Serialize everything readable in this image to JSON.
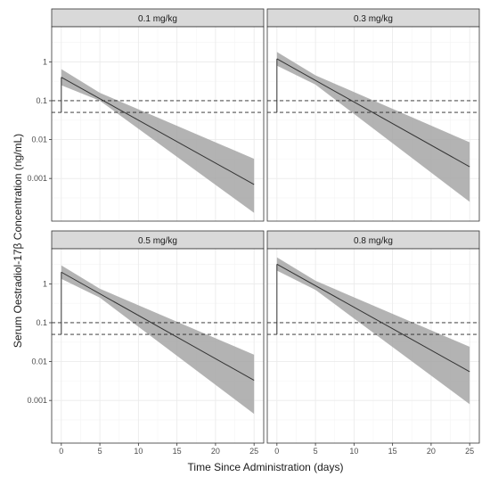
{
  "chart_data": {
    "type": "line",
    "layout": "2x2 facet grid",
    "ylabel": "Serum Oestradiol-17β Concentration (ng/mL)",
    "xlabel": "Time Since Administration (days)",
    "y_scale": "log10",
    "ylim": [
      8e-05,
      8
    ],
    "xlim": [
      -1.25,
      26.25
    ],
    "x_ticks": [
      0,
      5,
      10,
      15,
      20,
      25
    ],
    "x_tick_labels": [
      "0",
      "5",
      "10",
      "15",
      "20",
      "25"
    ],
    "y_ticks": [
      0.001,
      0.01,
      0.1,
      1
    ],
    "y_tick_labels": [
      "0.001",
      "0.01",
      "0.1",
      "1"
    ],
    "reference_lines": [
      0.1,
      0.05
    ],
    "reference_line_style": "dashed",
    "grid": true,
    "ribbon": "grey confidence band",
    "colors": {
      "panel_background": "#ffffff",
      "strip_background": "#d9d9d9",
      "ribbon": "#a6a6a6",
      "line": "#333333",
      "grid": "#ebebeb",
      "panel_border": "#333333"
    },
    "panels": [
      {
        "label": "0.1 mg/kg",
        "baseline": 0.05,
        "peak": {
          "x": 0,
          "y": 0.4
        },
        "line": [
          {
            "x": 0,
            "y": 0.4
          },
          {
            "x": 25,
            "y": 0.0007
          }
        ],
        "band_upper": [
          {
            "x": 0,
            "y": 0.65
          },
          {
            "x": 5,
            "y": 0.16
          },
          {
            "x": 25,
            "y": 0.0032
          }
        ],
        "band_lower": [
          {
            "x": 0,
            "y": 0.25
          },
          {
            "x": 5,
            "y": 0.1
          },
          {
            "x": 25,
            "y": 0.00013
          }
        ]
      },
      {
        "label": "0.3 mg/kg",
        "baseline": 0.05,
        "peak": {
          "x": 0,
          "y": 1.2
        },
        "line": [
          {
            "x": 0,
            "y": 1.2
          },
          {
            "x": 25,
            "y": 0.002
          }
        ],
        "band_upper": [
          {
            "x": 0,
            "y": 1.8
          },
          {
            "x": 5,
            "y": 0.45
          },
          {
            "x": 25,
            "y": 0.0085
          }
        ],
        "band_lower": [
          {
            "x": 0,
            "y": 0.8
          },
          {
            "x": 5,
            "y": 0.26
          },
          {
            "x": 25,
            "y": 0.00025
          }
        ]
      },
      {
        "label": "0.5 mg/kg",
        "baseline": 0.05,
        "peak": {
          "x": 0,
          "y": 2.0
        },
        "line": [
          {
            "x": 0,
            "y": 2.0
          },
          {
            "x": 25,
            "y": 0.0033
          }
        ],
        "band_upper": [
          {
            "x": 0,
            "y": 3.0
          },
          {
            "x": 5,
            "y": 0.75
          },
          {
            "x": 25,
            "y": 0.015
          }
        ],
        "band_lower": [
          {
            "x": 0,
            "y": 1.35
          },
          {
            "x": 5,
            "y": 0.44
          },
          {
            "x": 25,
            "y": 0.00045
          }
        ]
      },
      {
        "label": "0.8 mg/kg",
        "baseline": 0.05,
        "peak": {
          "x": 0,
          "y": 3.2
        },
        "line": [
          {
            "x": 0,
            "y": 3.2
          },
          {
            "x": 25,
            "y": 0.0055
          }
        ],
        "band_upper": [
          {
            "x": 0,
            "y": 4.8
          },
          {
            "x": 5,
            "y": 1.2
          },
          {
            "x": 25,
            "y": 0.024
          }
        ],
        "band_lower": [
          {
            "x": 0,
            "y": 2.2
          },
          {
            "x": 5,
            "y": 0.7
          },
          {
            "x": 25,
            "y": 0.0008
          }
        ]
      }
    ]
  }
}
